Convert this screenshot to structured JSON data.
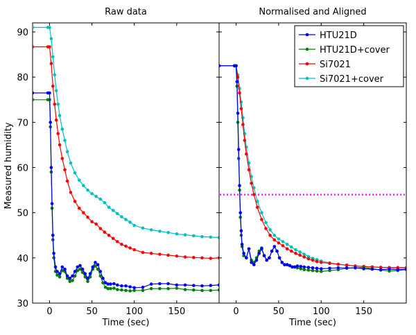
{
  "figure": {
    "ylabel": "Measured humidity"
  },
  "legend": {
    "placement": "top-right"
  },
  "chart_data": [
    {
      "type": "line",
      "title": "Raw data",
      "xlabel": "Time (sec)",
      "ylabel": "Measured humidity",
      "xlim": [
        -20,
        200
      ],
      "ylim": [
        30,
        92
      ],
      "xticks": [
        0,
        50,
        100,
        150
      ],
      "yticks": [
        30,
        40,
        50,
        60,
        70,
        80,
        90
      ],
      "grid": false,
      "series": [
        {
          "name": "HTU21D",
          "color": "#0000ff",
          "x": [
            -20,
            -2,
            0,
            1,
            2,
            3,
            4,
            5,
            7,
            9,
            12,
            15,
            18,
            21,
            24,
            27,
            30,
            33,
            36,
            39,
            42,
            45,
            48,
            51,
            54,
            57,
            60,
            63,
            66,
            69,
            72,
            76,
            80,
            85,
            90,
            95,
            100,
            110,
            120,
            130,
            140,
            150,
            160,
            170,
            180,
            190,
            200
          ],
          "y": [
            76.5,
            76.5,
            76.5,
            70,
            60,
            52,
            45,
            41,
            38,
            37,
            36.5,
            38,
            37.5,
            36,
            35.5,
            36,
            37,
            38,
            38.3,
            37.5,
            36.5,
            35.5,
            36.5,
            38,
            39,
            38.5,
            37,
            35.5,
            34.5,
            34.2,
            34.2,
            34.3,
            34,
            33.8,
            33.8,
            33.6,
            33.4,
            33.5,
            34.2,
            34.3,
            34.3,
            34,
            34,
            33.9,
            33.8,
            33.9,
            34
          ]
        },
        {
          "name": "HTU21D+cover",
          "color": "#008000",
          "x": [
            -20,
            -2,
            0,
            1,
            2,
            3,
            4,
            5,
            7,
            9,
            12,
            15,
            18,
            21,
            24,
            27,
            30,
            33,
            36,
            39,
            42,
            45,
            48,
            51,
            54,
            57,
            60,
            63,
            66,
            69,
            72,
            76,
            80,
            85,
            90,
            95,
            100,
            110,
            120,
            130,
            140,
            150,
            160,
            170,
            180,
            190,
            200
          ],
          "y": [
            75,
            75,
            75,
            69,
            59,
            51,
            44,
            40,
            37,
            36.2,
            35.8,
            37.2,
            37,
            35.5,
            34.8,
            35,
            36,
            37.2,
            37.5,
            36.8,
            35.8,
            34.8,
            35.8,
            37.5,
            38.2,
            37.5,
            36,
            34.5,
            33.5,
            33.2,
            33.2,
            33.3,
            33,
            32.9,
            32.8,
            32.7,
            32.8,
            32.8,
            33.2,
            33.2,
            33.2,
            33.3,
            33,
            32.9,
            32.8,
            32.8,
            32.9
          ]
        },
        {
          "name": "Si7021",
          "color": "#ff0000",
          "x": [
            -20,
            -2,
            0,
            2,
            4,
            6,
            8,
            10,
            12,
            15,
            18,
            21,
            25,
            30,
            35,
            40,
            45,
            50,
            55,
            60,
            65,
            70,
            75,
            80,
            85,
            90,
            95,
            100,
            110,
            120,
            130,
            140,
            150,
            160,
            170,
            180,
            190,
            200
          ],
          "y": [
            86.7,
            86.7,
            86.7,
            83,
            78,
            74,
            70.5,
            67.5,
            65,
            62,
            59.5,
            57,
            54.5,
            52.5,
            51,
            50,
            49,
            48,
            47.5,
            46.5,
            45.7,
            45,
            44.3,
            43.6,
            43,
            42.6,
            42.2,
            41.8,
            41.2,
            41,
            40.8,
            40.6,
            40.4,
            40.2,
            40.1,
            40,
            39.9,
            40
          ]
        },
        {
          "name": "Si7021+cover",
          "color": "#00bfbf",
          "x": [
            -20,
            -2,
            0,
            2,
            4,
            6,
            8,
            10,
            12,
            15,
            18,
            21,
            25,
            30,
            35,
            40,
            45,
            50,
            55,
            60,
            65,
            70,
            75,
            80,
            85,
            90,
            95,
            100,
            110,
            120,
            130,
            140,
            150,
            160,
            170,
            180,
            190,
            200
          ],
          "y": [
            91,
            91,
            91,
            88.5,
            84.5,
            80.5,
            77,
            74,
            71.5,
            68.5,
            66,
            63.5,
            61,
            58.8,
            57.2,
            56,
            55,
            54.2,
            53.6,
            53,
            52.2,
            51.2,
            50.5,
            49.8,
            49.1,
            48.5,
            47.9,
            47.2,
            46.6,
            46.2,
            45.9,
            45.6,
            45.3,
            45.1,
            44.9,
            44.7,
            44.6,
            44.5
          ]
        }
      ]
    },
    {
      "type": "line",
      "title": "Normalised and Aligned",
      "xlabel": "Time (sec)",
      "xlim": [
        -20,
        200
      ],
      "ylim": [
        30,
        92
      ],
      "xticks": [
        0,
        50,
        100,
        150
      ],
      "yticks": [
        30,
        40,
        50,
        60,
        70,
        80,
        90
      ],
      "grid": false,
      "hline": {
        "y": 54,
        "color": "#ff00ff",
        "style": "dotted"
      },
      "series": [
        {
          "name": "HTU21D",
          "color": "#0000ff",
          "x": [
            -20,
            -2,
            0,
            1,
            2,
            3,
            4,
            5,
            6,
            7,
            9,
            12,
            15,
            18,
            21,
            24,
            27,
            30,
            33,
            36,
            39,
            42,
            45,
            48,
            51,
            54,
            57,
            60,
            63,
            66,
            69,
            72,
            76,
            80,
            85,
            90,
            95,
            100,
            110,
            120,
            130,
            140,
            150,
            160,
            170,
            180,
            190,
            200
          ],
          "y": [
            82.5,
            82.5,
            82.5,
            79,
            72,
            64,
            56,
            50,
            46,
            43,
            41,
            40,
            42,
            39,
            38.5,
            39.5,
            41,
            42,
            40.5,
            39.5,
            40,
            41.5,
            42.5,
            41.5,
            40,
            39,
            38.5,
            38.5,
            38.3,
            38,
            38,
            38.2,
            38.1,
            38,
            37.9,
            37.8,
            37.7,
            37.6,
            37.7,
            37.8,
            37.8,
            37.8,
            37.6,
            37.5,
            37.4,
            37.5,
            37.4,
            37.5
          ]
        },
        {
          "name": "HTU21D+cover",
          "color": "#008000",
          "x": [
            -20,
            -2,
            0,
            1,
            2,
            3,
            4,
            5,
            6,
            7,
            9,
            12,
            15,
            18,
            21,
            24,
            27,
            30,
            33,
            36,
            39,
            42,
            45,
            48,
            51,
            54,
            57,
            60,
            63,
            66,
            69,
            72,
            76,
            80,
            85,
            90,
            95,
            100,
            110,
            120,
            130,
            140,
            150,
            160,
            170,
            180,
            190,
            200
          ],
          "y": [
            82.5,
            82.5,
            82.5,
            78,
            70,
            62,
            55,
            49,
            45,
            42.5,
            40.5,
            40,
            42,
            39.5,
            39,
            40,
            41.5,
            42.2,
            40.5,
            39.5,
            40,
            41.5,
            42.5,
            41.5,
            40,
            39,
            38.5,
            38.5,
            38.3,
            38,
            38,
            37.8,
            37.6,
            37.4,
            37.3,
            37.2,
            37.1,
            37,
            37.2,
            37.4,
            37.7,
            37.8,
            37.9,
            37.6,
            37.3,
            37.1,
            37.2,
            37.4
          ]
        },
        {
          "name": "Si7021",
          "color": "#ff0000",
          "x": [
            -20,
            -2,
            0,
            2,
            4,
            6,
            8,
            10,
            12,
            15,
            18,
            21,
            25,
            30,
            35,
            40,
            45,
            50,
            55,
            60,
            65,
            70,
            75,
            80,
            85,
            90,
            95,
            100,
            110,
            120,
            130,
            140,
            150,
            160,
            170,
            180,
            190,
            200
          ],
          "y": [
            82.5,
            82.5,
            82.5,
            80,
            76.5,
            73,
            69.5,
            66,
            63,
            59.5,
            56.5,
            54,
            51.2,
            48.5,
            46.5,
            45,
            44,
            43.3,
            42.7,
            42,
            41.5,
            41,
            40.6,
            40.2,
            39.8,
            39.5,
            39.2,
            39,
            38.8,
            38.6,
            38.4,
            38.2,
            38.1,
            38,
            37.9,
            37.8,
            37.8,
            37.8
          ]
        },
        {
          "name": "Si7021+cover",
          "color": "#00bfbf",
          "x": [
            -20,
            -2,
            0,
            2,
            4,
            6,
            8,
            10,
            12,
            15,
            18,
            21,
            25,
            30,
            35,
            40,
            45,
            50,
            55,
            60,
            65,
            70,
            75,
            80,
            85,
            90,
            95,
            100,
            110,
            120,
            130,
            140,
            150,
            160,
            170,
            180,
            190,
            200
          ],
          "y": [
            82.5,
            82.5,
            82.5,
            80.5,
            77.5,
            74.5,
            71,
            67.5,
            64.5,
            61,
            58,
            55.5,
            52.5,
            50,
            47.8,
            46.2,
            45,
            44.2,
            43.6,
            43,
            42.4,
            41.8,
            41.3,
            40.8,
            40.3,
            39.9,
            39.6,
            39.3,
            38.9,
            38.6,
            38.4,
            38.2,
            38.1,
            38,
            37.9,
            37.9,
            37.9,
            37.9
          ]
        }
      ]
    }
  ]
}
